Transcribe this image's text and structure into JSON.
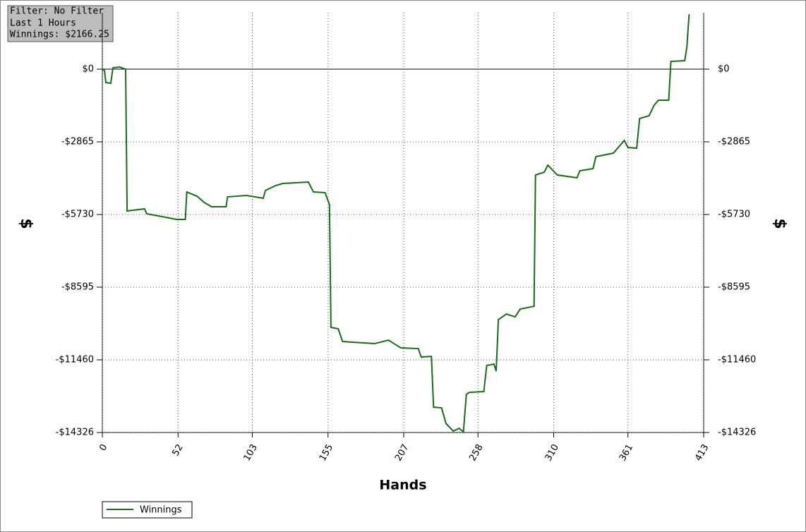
{
  "info": {
    "filter": "Filter: No Filter",
    "period": "Last  1 Hours",
    "winnings": "Winnings: $2166.25"
  },
  "chart_data": {
    "type": "line",
    "xlabel": "Hands",
    "ylabel": "$",
    "x": [
      0,
      1.5,
      2.4,
      5.8,
      7.3,
      12,
      16,
      17,
      29,
      30.5,
      41,
      51,
      57,
      58,
      65,
      70,
      75,
      85,
      86,
      99,
      110.5,
      112,
      119,
      124,
      141.5,
      145,
      153,
      156,
      157,
      162,
      165,
      187,
      196.5,
      205,
      217,
      219,
      226,
      227.5,
      233,
      236,
      241,
      245,
      248,
      250,
      252,
      262,
      264,
      269,
      270.5,
      272,
      277.5,
      283.5,
      287,
      296.5,
      297.5,
      303.5,
      306,
      312.5,
      326,
      328,
      337,
      339,
      351,
      358.5,
      361,
      367,
      369,
      375.5,
      379,
      382,
      389,
      390.5,
      400,
      401.5,
      403
    ],
    "series": [
      {
        "name": "Winnings",
        "color": "#1a6b1a",
        "values": [
          0,
          -56,
          -529,
          -556,
          56,
          83,
          0,
          -5592,
          -5508,
          -5703,
          -5814,
          -5926,
          -5926,
          -4841,
          -5008,
          -5258,
          -5425,
          -5425,
          -5035,
          -4980,
          -5091,
          -4785,
          -4590,
          -4507,
          -4451,
          -4841,
          -4869,
          -5341,
          -10182,
          -10238,
          -10739,
          -10822,
          -10683,
          -10989,
          -11017,
          -11350,
          -11323,
          -13326,
          -13354,
          -13966,
          -14272,
          -14160,
          -14299,
          -12825,
          -12742,
          -12714,
          -11684,
          -11628,
          -11907,
          -9876,
          -9654,
          -9765,
          -9459,
          -9348,
          -4173,
          -4062,
          -3784,
          -4173,
          -4284,
          -4006,
          -3923,
          -3450,
          -3311,
          -2810,
          -3088,
          -3116,
          -1947,
          -1836,
          -1419,
          -1224,
          -1224,
          306,
          334,
          890,
          2166.25
        ]
      }
    ],
    "xlim": [
      0,
      413
    ],
    "xticks": [
      0,
      52,
      103,
      155,
      207,
      258,
      310,
      361,
      413
    ],
    "ylim": [
      -14326,
      2226
    ],
    "yticks": [
      {
        "value": -14326,
        "label": "-$14326"
      },
      {
        "value": -11460,
        "label": "-$11460"
      },
      {
        "value": -8595,
        "label": "-$8595"
      },
      {
        "value": -5730,
        "label": "-$5730"
      },
      {
        "value": -2865,
        "label": "-$2865"
      },
      {
        "value": 0,
        "label": "$0"
      }
    ],
    "grid": true,
    "legend": "bottom-left"
  }
}
